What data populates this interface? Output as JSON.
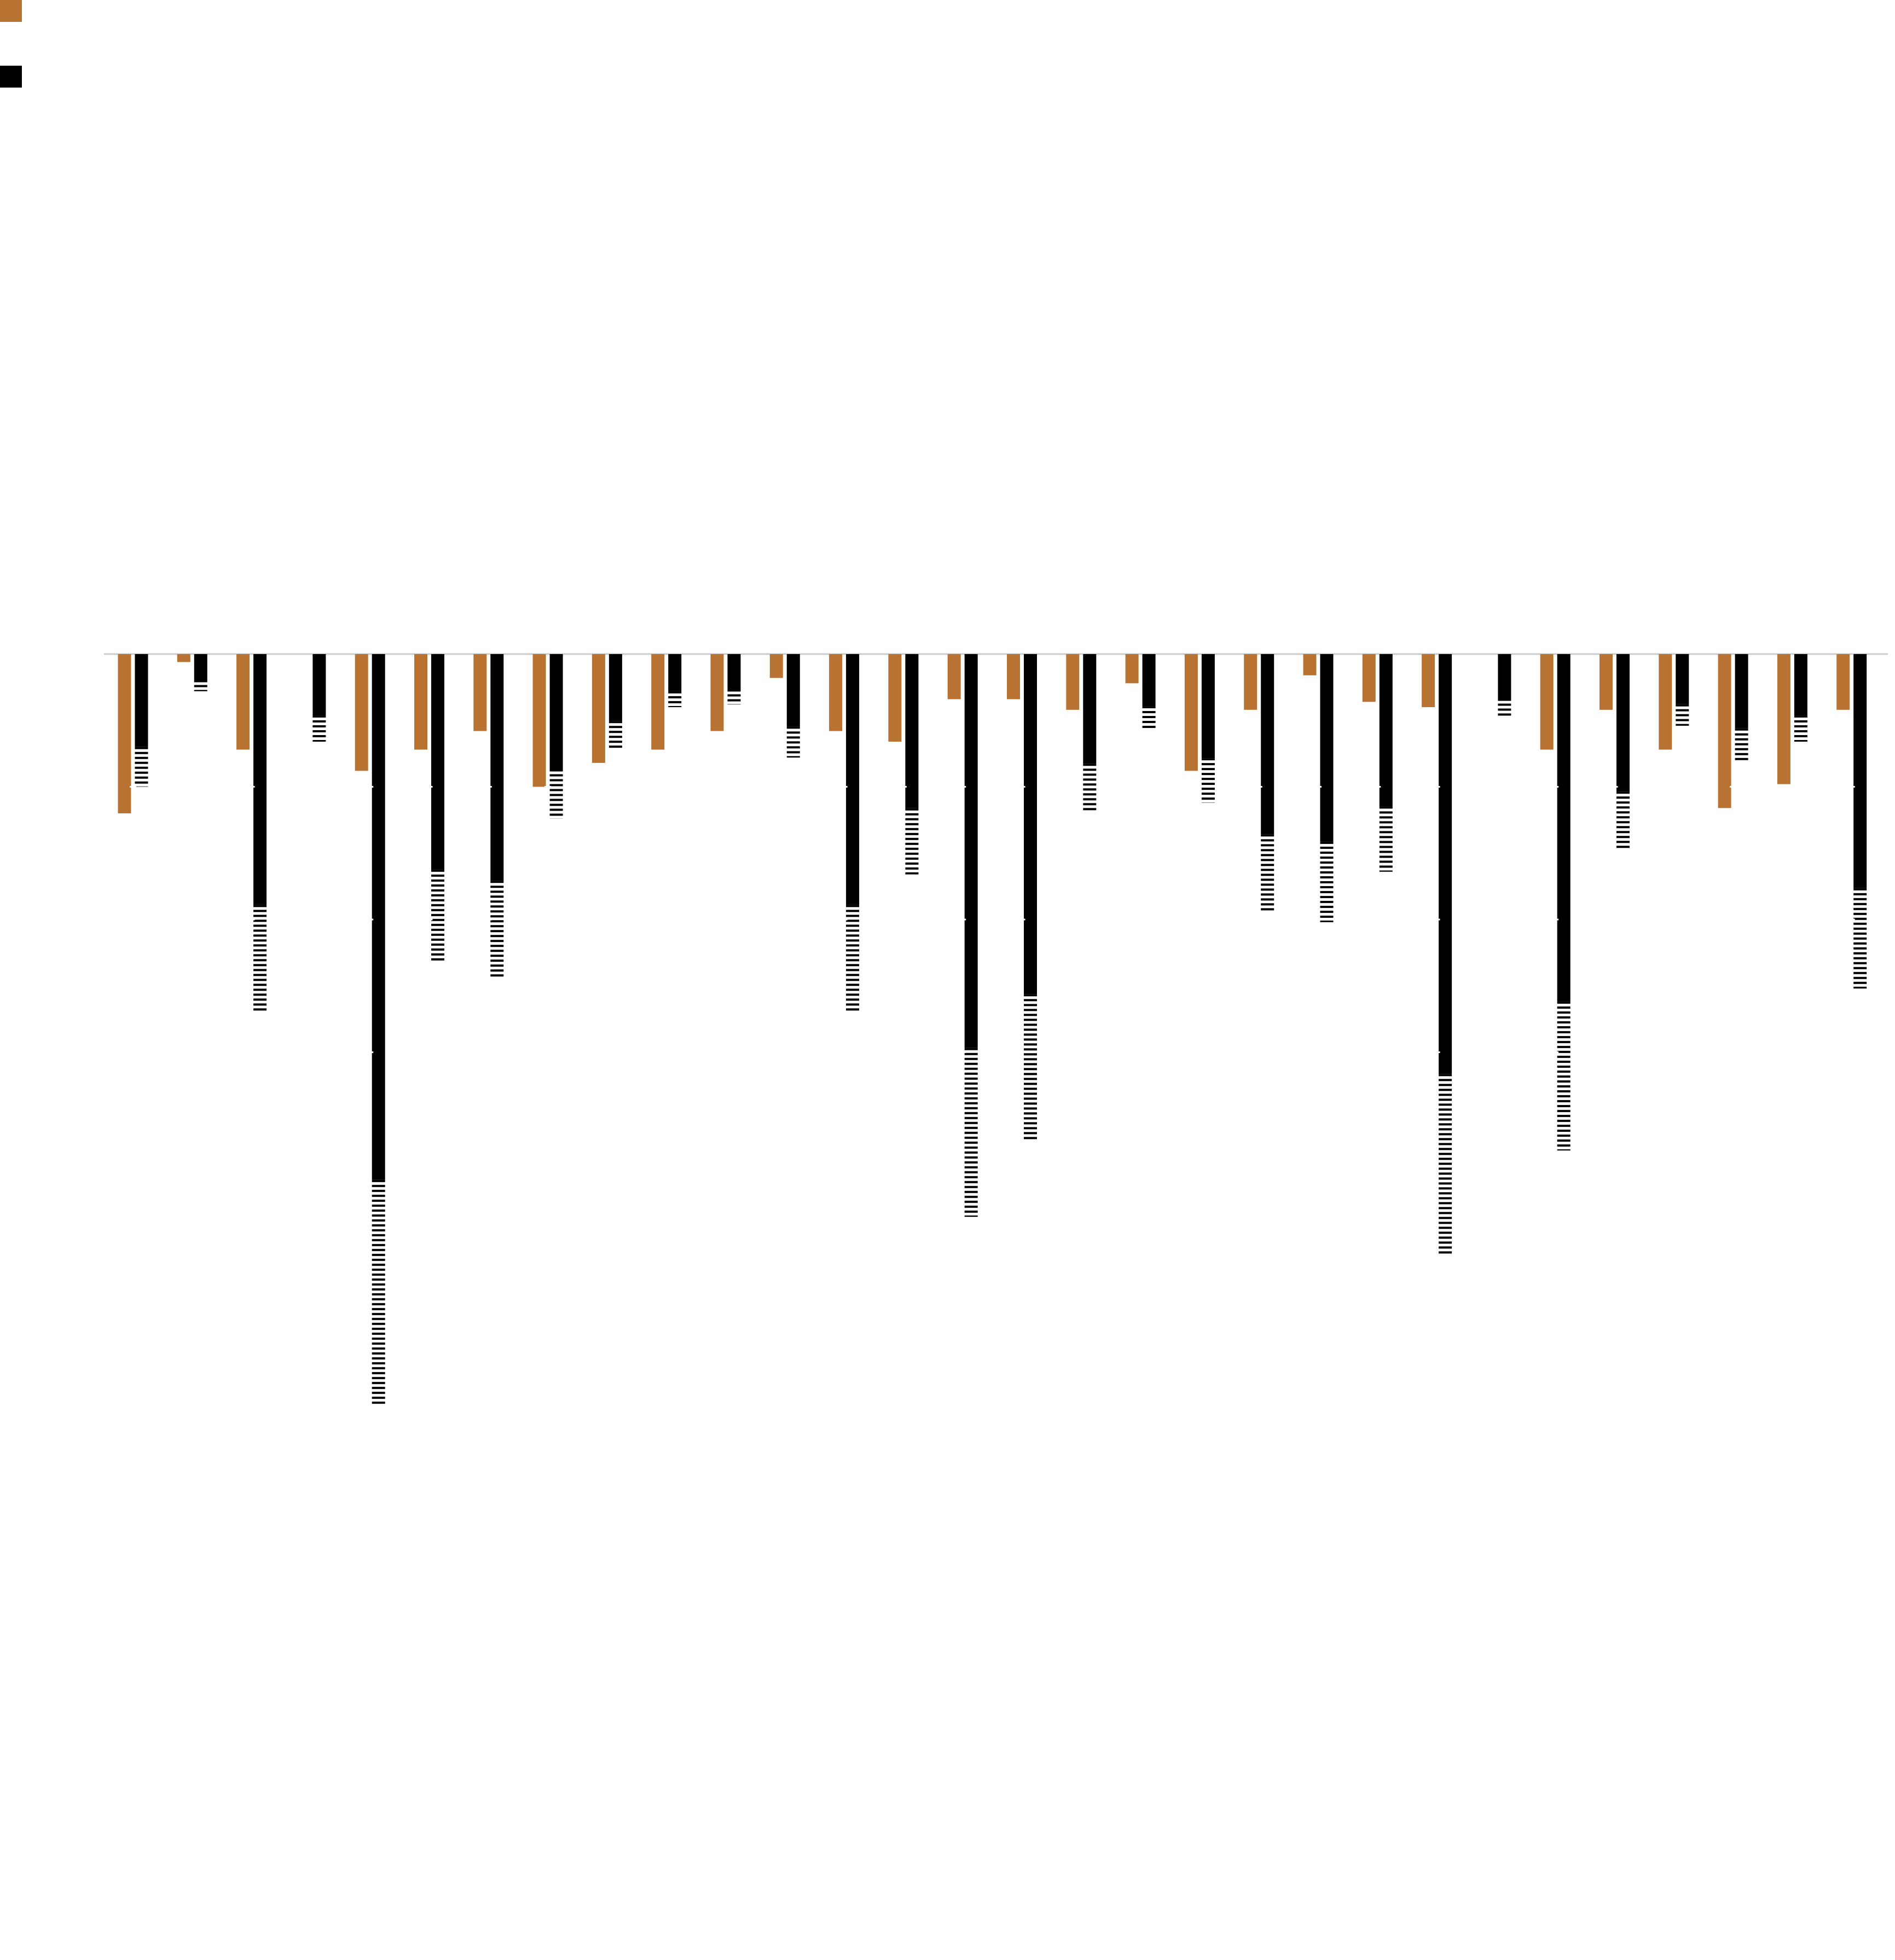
{
  "chart_data": {
    "type": "bar",
    "orientation": "vertical",
    "baseline": "top",
    "grid": false,
    "legend_position": "top-left",
    "categories": [
      "",
      "",
      "",
      "",
      "",
      "",
      "",
      "",
      "",
      "",
      "",
      "",
      "",
      "",
      "",
      "",
      "",
      "",
      "",
      "",
      "",
      "",
      "",
      "",
      "",
      "",
      "",
      "",
      "",
      ""
    ],
    "ylim": [
      -2.95,
      2.45
    ],
    "series": [
      {
        "name": "",
        "color": "#b87333",
        "pattern": "solid",
        "values": [
          -0.6,
          -0.03,
          -0.36,
          0.0,
          -0.44,
          -0.36,
          -0.29,
          -0.5,
          -0.41,
          -0.36,
          -0.29,
          -0.09,
          -0.29,
          -0.33,
          -0.17,
          -0.17,
          -0.21,
          -0.11,
          -0.44,
          -0.21,
          -0.08,
          -0.18,
          -0.2,
          0.0,
          -0.36,
          -0.21,
          -0.36,
          -0.58,
          -0.49,
          -0.21
        ]
      },
      {
        "name": "",
        "color": "#000000",
        "pattern": "striped-end",
        "values": [
          -0.5,
          -0.14,
          -1.35,
          -0.33,
          -2.83,
          -1.16,
          -1.22,
          -0.62,
          -0.36,
          -0.2,
          -0.19,
          -0.39,
          -1.35,
          -0.83,
          -2.12,
          -1.83,
          -0.59,
          -0.28,
          -0.56,
          -0.97,
          -1.01,
          -0.82,
          -2.26,
          -0.24,
          -1.87,
          -0.74,
          -0.27,
          -0.4,
          -0.33,
          -1.26
        ]
      }
    ],
    "ticks": [
      0,
      -0.5,
      -1.0,
      -1.5
    ]
  }
}
